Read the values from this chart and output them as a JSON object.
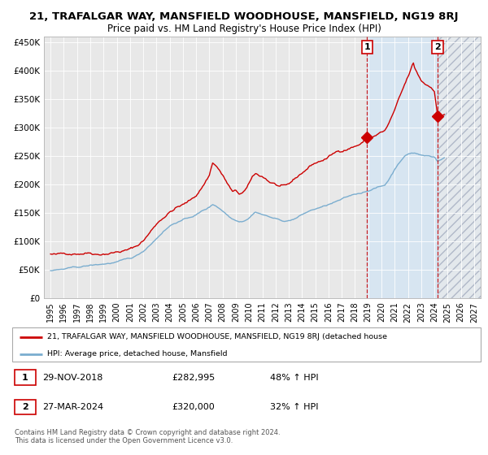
{
  "title": "21, TRAFALGAR WAY, MANSFIELD WOODHOUSE, MANSFIELD, NG19 8RJ",
  "subtitle": "Price paid vs. HM Land Registry's House Price Index (HPI)",
  "xlim": [
    1994.5,
    2027.5
  ],
  "ylim": [
    0,
    460000
  ],
  "yticks": [
    0,
    50000,
    100000,
    150000,
    200000,
    250000,
    300000,
    350000,
    400000,
    450000
  ],
  "ytick_labels": [
    "£0",
    "£50K",
    "£100K",
    "£150K",
    "£200K",
    "£250K",
    "£300K",
    "£350K",
    "£400K",
    "£450K"
  ],
  "xticks": [
    1995,
    1996,
    1997,
    1998,
    1999,
    2000,
    2001,
    2002,
    2003,
    2004,
    2005,
    2006,
    2007,
    2008,
    2009,
    2010,
    2011,
    2012,
    2013,
    2014,
    2015,
    2016,
    2017,
    2018,
    2019,
    2020,
    2021,
    2022,
    2023,
    2024,
    2025,
    2026,
    2027
  ],
  "red_line_color": "#cc0000",
  "blue_line_color": "#7aadcf",
  "marker1_x": 2018.92,
  "marker1_y": 282995,
  "marker2_x": 2024.25,
  "marker2_y": 320000,
  "vline1_x": 2018.92,
  "vline2_x": 2024.25,
  "shaded_blue_start": 2018.92,
  "shaded_blue_end": 2024.25,
  "shaded_hatch_start": 2024.25,
  "shaded_hatch_end": 2027.5,
  "legend_red_label": "21, TRAFALGAR WAY, MANSFIELD WOODHOUSE, MANSFIELD, NG19 8RJ (detached house",
  "legend_blue_label": "HPI: Average price, detached house, Mansfield",
  "note1_date": "29-NOV-2018",
  "note1_price": "£282,995",
  "note1_hpi": "48% ↑ HPI",
  "note2_date": "27-MAR-2024",
  "note2_price": "£320,000",
  "note2_hpi": "32% ↑ HPI",
  "footer1": "Contains HM Land Registry data © Crown copyright and database right 2024.",
  "footer2": "This data is licensed under the Open Government Licence v3.0.",
  "plot_bg": "#e8e8e8",
  "title_fontsize": 9.5,
  "subtitle_fontsize": 8.5
}
